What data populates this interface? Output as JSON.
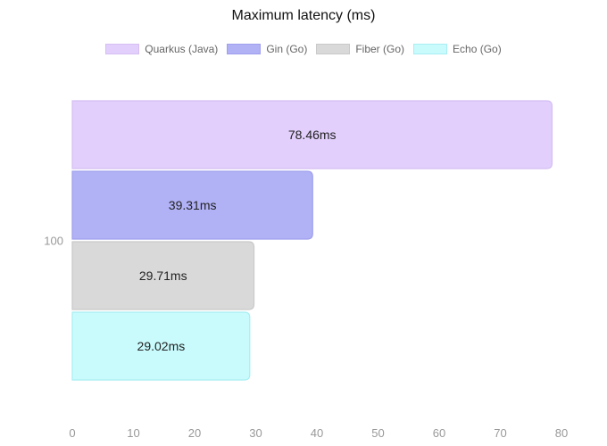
{
  "chart_data": {
    "type": "bar",
    "orientation": "horizontal",
    "title": "Maximum latency (ms)",
    "categories": [
      "100"
    ],
    "series": [
      {
        "name": "Quarkus (Java)",
        "values": [
          78.46
        ],
        "label": "78.46ms",
        "color": "#e2cffc",
        "border": "#d5bff2"
      },
      {
        "name": "Gin (Go)",
        "values": [
          39.31
        ],
        "label": "39.31ms",
        "color": "#b1b1f6",
        "border": "#9f9fee"
      },
      {
        "name": "Fiber (Go)",
        "values": [
          29.71
        ],
        "label": "29.71ms",
        "color": "#d9d9d9",
        "border": "#c9c9c9"
      },
      {
        "name": "Echo (Go)",
        "values": [
          29.02
        ],
        "label": "29.02ms",
        "color": "#c9fbfd",
        "border": "#a8eef2"
      }
    ],
    "xlim": [
      0,
      80
    ],
    "xticks": [
      "0",
      "10",
      "20",
      "30",
      "40",
      "50",
      "60",
      "70",
      "80"
    ],
    "grid": false,
    "legend_position": "top"
  }
}
